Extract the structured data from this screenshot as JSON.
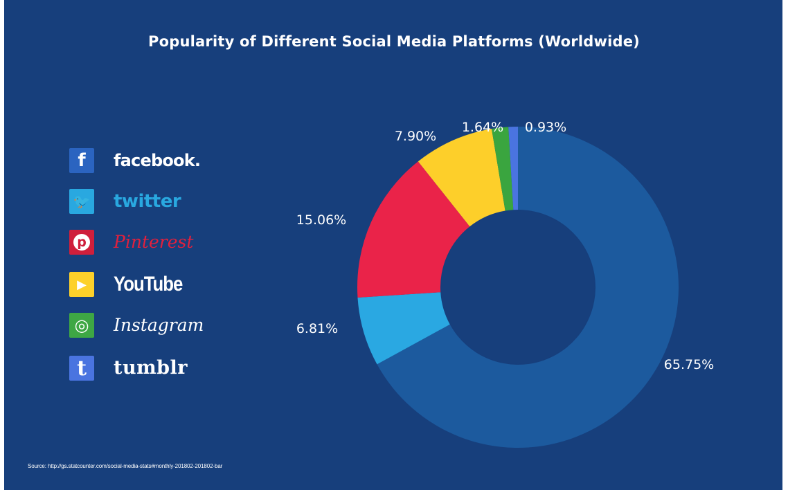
{
  "title": "Popularity of Different Social Media Platforms (Worldwide)",
  "source": "Source: http://gs.statcounter.com/social-media-stats#monthly-201802-201802-bar",
  "legend": [
    {
      "key": "facebook",
      "label": "facebook.",
      "icon_char": "f",
      "icon": "facebook-logo-icon",
      "color": "#2b64c0"
    },
    {
      "key": "twitter",
      "label": "twitter",
      "icon_char": "🐦",
      "icon": "twitter-bird-icon",
      "color": "#29a8e0"
    },
    {
      "key": "pinterest",
      "label": "Pinterest",
      "icon_char": "p",
      "icon": "pinterest-logo-icon",
      "color": "#cf1f3c"
    },
    {
      "key": "youtube",
      "label": "YouTube",
      "icon_char": "▶",
      "icon": "youtube-play-icon",
      "color": "#fdd12a"
    },
    {
      "key": "instagram",
      "label": "Instagram",
      "icon_char": "◎",
      "icon": "instagram-camera-icon",
      "color": "#3ea744"
    },
    {
      "key": "tumblr",
      "label": "tumblr",
      "icon_char": "t",
      "icon": "tumblr-logo-icon",
      "color": "#4a74e0"
    }
  ],
  "chart_data": {
    "type": "pie",
    "variant": "donut",
    "title": "Popularity of Different Social Media Platforms (Worldwide)",
    "categories": [
      "facebook",
      "twitter",
      "Pinterest",
      "YouTube",
      "Instagram",
      "tumblr"
    ],
    "values": [
      65.75,
      6.81,
      15.06,
      7.9,
      1.64,
      0.93
    ],
    "labels": [
      "65.75%",
      "6.81%",
      "15.06%",
      "7.90%",
      "1.64%",
      "0.93%"
    ],
    "colors": [
      "#1c5a9e",
      "#2aa8e2",
      "#ea2349",
      "#fdcf2a",
      "#3aa53f",
      "#4a74e0"
    ],
    "start": "top",
    "direction": "clockwise",
    "legend_position": "left"
  }
}
